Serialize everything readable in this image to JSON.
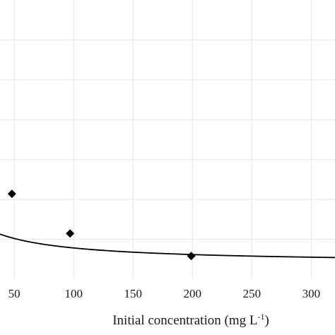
{
  "chart_data": {
    "type": "line",
    "title": "",
    "xlabel": "Initial concentration (mg L",
    "xlabel_sup": "-1",
    "xlabel_close": ")",
    "ylabel": "",
    "xlim": [
      38,
      320
    ],
    "ylim": [
      0,
      1.4
    ],
    "grid": true,
    "xticks": [
      50,
      100,
      150,
      200,
      250,
      300
    ],
    "xtick_labels": [
      "50",
      "100",
      "150",
      "200",
      "250",
      "300"
    ],
    "yticks": [
      0.2,
      0.4,
      0.6,
      0.8,
      1.0,
      1.2
    ],
    "series": [
      {
        "kind": "fitted-curve",
        "formula_note": "y = 10 / (x + 30.6) + 0.08",
        "markers": false,
        "color": "#000000"
      },
      {
        "kind": "measured-points",
        "marker": "diamond",
        "color": "#000000",
        "x": [
          48,
          97,
          199
        ],
        "y": [
          0.428,
          0.229,
          0.116
        ]
      }
    ]
  }
}
